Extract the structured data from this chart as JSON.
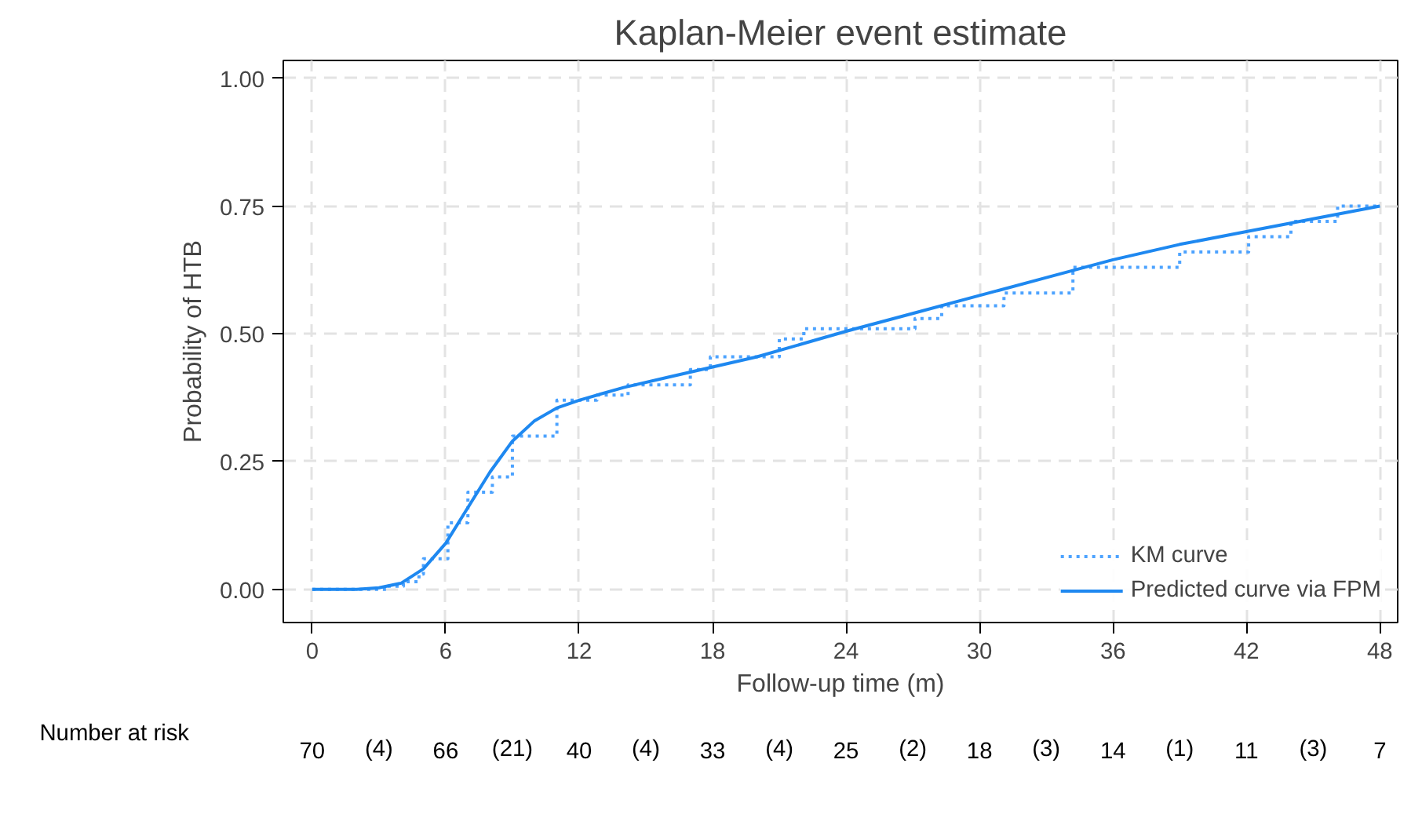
{
  "chart_data": {
    "type": "line",
    "title": "Kaplan-Meier event estimate",
    "xlabel": "Follow-up time (m)",
    "ylabel": "Probability of HTB",
    "xlim": [
      -1.3,
      48.8
    ],
    "ylim": [
      -0.065,
      1.035
    ],
    "xticks": [
      0,
      6,
      12,
      18,
      24,
      30,
      36,
      42,
      48
    ],
    "yticks": [
      {
        "value": 0,
        "label": "0.00"
      },
      {
        "value": 0.25,
        "label": "0.25"
      },
      {
        "value": 0.5,
        "label": "0.50"
      },
      {
        "value": 0.75,
        "label": "0.75"
      },
      {
        "value": 1,
        "label": "1.00"
      }
    ],
    "grid": true,
    "legend": "bottom right",
    "series": [
      {
        "name": "KM curve",
        "type": "step",
        "color": "#4da3ff",
        "line_style": "dotted",
        "x": [
          0,
          3.4,
          4.1,
          4.8,
          5.0,
          6.1,
          7.0,
          8.1,
          9.0,
          11.0,
          12.8,
          14.2,
          17.0,
          17.9,
          21.0,
          22.1,
          27.1,
          28.3,
          31.1,
          34.2,
          39.0,
          42.1,
          44.0,
          46.1,
          48
        ],
        "values": [
          0,
          0.006,
          0.015,
          0.03,
          0.06,
          0.13,
          0.19,
          0.22,
          0.3,
          0.37,
          0.38,
          0.4,
          0.43,
          0.455,
          0.49,
          0.51,
          0.53,
          0.555,
          0.58,
          0.63,
          0.66,
          0.69,
          0.72,
          0.75,
          0.75
        ]
      },
      {
        "name": "Predicted curve via FPM",
        "color": "#1e88f0",
        "line_style": "solid",
        "x": [
          0,
          2,
          3,
          4,
          5,
          6,
          7,
          8,
          9,
          10,
          11,
          12,
          14,
          16,
          18,
          20,
          22,
          24,
          27,
          30,
          33,
          36,
          39,
          42,
          45,
          48
        ],
        "values": [
          0,
          0,
          0.003,
          0.012,
          0.04,
          0.09,
          0.16,
          0.23,
          0.29,
          0.33,
          0.355,
          0.37,
          0.395,
          0.415,
          0.435,
          0.455,
          0.48,
          0.505,
          0.54,
          0.575,
          0.61,
          0.645,
          0.675,
          0.7,
          0.725,
          0.75
        ]
      }
    ],
    "annotations": [
      "Number at risk",
      "70",
      "(4)",
      "66",
      "(21)",
      "40",
      "(4)",
      "33",
      "(4)",
      "25",
      "(2)",
      "18",
      "(3)",
      "14",
      "(1)",
      "11",
      "(3)",
      "7"
    ]
  }
}
